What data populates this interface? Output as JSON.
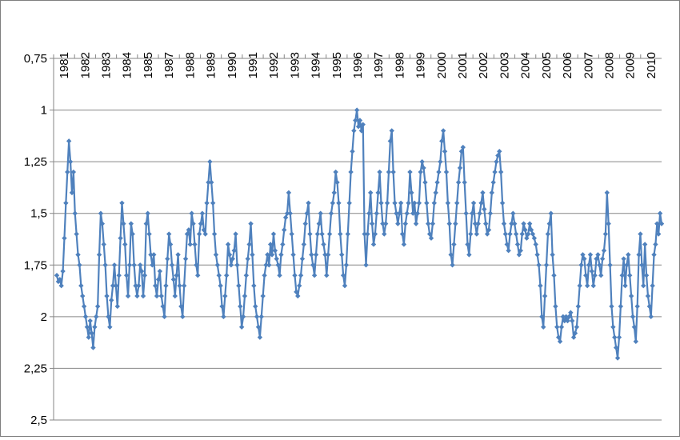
{
  "chart_data": {
    "type": "line",
    "title": "",
    "xlabel": "",
    "ylabel": "",
    "y_inverted": true,
    "ylim": [
      0.75,
      2.5
    ],
    "yticks": [
      0.75,
      1,
      1.25,
      1.5,
      1.75,
      2,
      2.25,
      2.5
    ],
    "ytick_labels": [
      "0,75",
      "1",
      "1,25",
      "1,5",
      "1,75",
      "2",
      "2,25",
      "2,5"
    ],
    "xtick_labels": [
      "1981",
      "1982",
      "1983",
      "1984",
      "1985",
      "1987",
      "1988",
      "1989",
      "1990",
      "1991",
      "1992",
      "1993",
      "1994",
      "1995",
      "1996",
      "1997",
      "1998",
      "1999",
      "2000",
      "2001",
      "2002",
      "2003",
      "2004",
      "2005",
      "2006",
      "2007",
      "2008",
      "2009",
      "2010"
    ],
    "xtick_label_position": "top",
    "grid": {
      "horizontal": true,
      "vertical": false
    },
    "legend": "none",
    "marker": "diamond",
    "series": [
      {
        "color": "#4f81bd",
        "values": [
          1.8,
          1.83,
          1.82,
          1.85,
          1.78,
          1.62,
          1.45,
          1.3,
          1.15,
          1.25,
          1.4,
          1.3,
          1.5,
          1.6,
          1.7,
          1.75,
          1.85,
          1.9,
          1.95,
          2.0,
          2.05,
          2.1,
          2.02,
          2.08,
          2.15,
          2.05,
          2.0,
          1.95,
          1.7,
          1.5,
          1.55,
          1.65,
          1.75,
          1.9,
          2.0,
          2.05,
          1.92,
          1.85,
          1.75,
          1.85,
          1.95,
          1.8,
          1.62,
          1.45,
          1.55,
          1.65,
          1.8,
          1.9,
          1.75,
          1.55,
          1.6,
          1.75,
          1.85,
          1.9,
          1.85,
          1.75,
          1.78,
          1.9,
          1.8,
          1.55,
          1.5,
          1.6,
          1.7,
          1.75,
          1.7,
          1.85,
          1.9,
          1.82,
          1.78,
          1.9,
          1.95,
          2.0,
          1.85,
          1.72,
          1.6,
          1.65,
          1.75,
          1.82,
          1.9,
          1.8,
          1.7,
          1.85,
          1.95,
          2.0,
          1.85,
          1.72,
          1.6,
          1.58,
          1.65,
          1.5,
          1.55,
          1.65,
          1.75,
          1.8,
          1.6,
          1.55,
          1.5,
          1.58,
          1.6,
          1.45,
          1.35,
          1.25,
          1.35,
          1.45,
          1.6,
          1.7,
          1.75,
          1.8,
          1.85,
          1.95,
          2.0,
          1.9,
          1.8,
          1.65,
          1.7,
          1.75,
          1.72,
          1.68,
          1.6,
          1.75,
          1.85,
          1.95,
          2.05,
          2.0,
          1.9,
          1.8,
          1.72,
          1.65,
          1.55,
          1.7,
          1.85,
          1.95,
          2.0,
          2.05,
          2.1,
          2.0,
          1.9,
          1.8,
          1.75,
          1.7,
          1.75,
          1.65,
          1.7,
          1.6,
          1.68,
          1.72,
          1.75,
          1.8,
          1.7,
          1.65,
          1.58,
          1.52,
          1.5,
          1.4,
          1.5,
          1.6,
          1.7,
          1.8,
          1.88,
          1.9,
          1.85,
          1.8,
          1.72,
          1.65,
          1.55,
          1.5,
          1.45,
          1.6,
          1.7,
          1.75,
          1.8,
          1.7,
          1.6,
          1.55,
          1.5,
          1.6,
          1.65,
          1.7,
          1.8,
          1.7,
          1.6,
          1.5,
          1.45,
          1.4,
          1.3,
          1.35,
          1.45,
          1.6,
          1.7,
          1.8,
          1.85,
          1.75,
          1.6,
          1.45,
          1.3,
          1.2,
          1.1,
          1.05,
          1.0,
          1.08,
          1.05,
          1.1,
          1.07,
          1.6,
          1.75,
          1.6,
          1.5,
          1.4,
          1.55,
          1.65,
          1.6,
          1.5,
          1.4,
          1.3,
          1.45,
          1.55,
          1.6,
          1.55,
          1.45,
          1.3,
          1.15,
          1.1,
          1.3,
          1.45,
          1.5,
          1.55,
          1.5,
          1.45,
          1.6,
          1.65,
          1.55,
          1.5,
          1.45,
          1.3,
          1.4,
          1.5,
          1.45,
          1.55,
          1.5,
          1.45,
          1.3,
          1.25,
          1.28,
          1.35,
          1.45,
          1.55,
          1.6,
          1.62,
          1.55,
          1.45,
          1.4,
          1.35,
          1.3,
          1.25,
          1.15,
          1.1,
          1.2,
          1.3,
          1.45,
          1.55,
          1.7,
          1.75,
          1.65,
          1.55,
          1.45,
          1.35,
          1.28,
          1.2,
          1.18,
          1.35,
          1.5,
          1.65,
          1.7,
          1.6,
          1.5,
          1.45,
          1.55,
          1.6,
          1.55,
          1.5,
          1.45,
          1.4,
          1.48,
          1.55,
          1.6,
          1.58,
          1.5,
          1.4,
          1.35,
          1.3,
          1.25,
          1.22,
          1.2,
          1.3,
          1.45,
          1.55,
          1.6,
          1.65,
          1.68,
          1.6,
          1.55,
          1.5,
          1.55,
          1.6,
          1.65,
          1.7,
          1.68,
          1.6,
          1.55,
          1.58,
          1.62,
          1.6,
          1.55,
          1.58,
          1.6,
          1.62,
          1.65,
          1.7,
          1.75,
          1.85,
          2.0,
          2.05,
          1.9,
          1.75,
          1.6,
          1.55,
          1.5,
          1.7,
          1.8,
          1.95,
          2.05,
          2.1,
          2.12,
          2.05,
          2.0,
          2.02,
          2.0,
          2.02,
          2.0,
          1.98,
          2.02,
          2.1,
          2.08,
          2.05,
          1.95,
          1.85,
          1.75,
          1.7,
          1.72,
          1.8,
          1.85,
          1.75,
          1.7,
          1.78,
          1.85,
          1.8,
          1.72,
          1.7,
          1.75,
          1.8,
          1.72,
          1.68,
          1.6,
          1.4,
          1.55,
          1.75,
          1.95,
          2.05,
          2.1,
          2.15,
          2.2,
          2.1,
          1.95,
          1.8,
          1.72,
          1.85,
          1.75,
          1.7,
          1.8,
          1.9,
          2.0,
          2.05,
          2.12,
          1.95,
          1.7,
          1.6,
          1.75,
          1.85,
          1.65,
          1.8,
          1.9,
          1.95,
          2.0,
          1.85,
          1.7,
          1.65,
          1.55,
          1.6,
          1.5,
          1.55
        ]
      }
    ]
  }
}
